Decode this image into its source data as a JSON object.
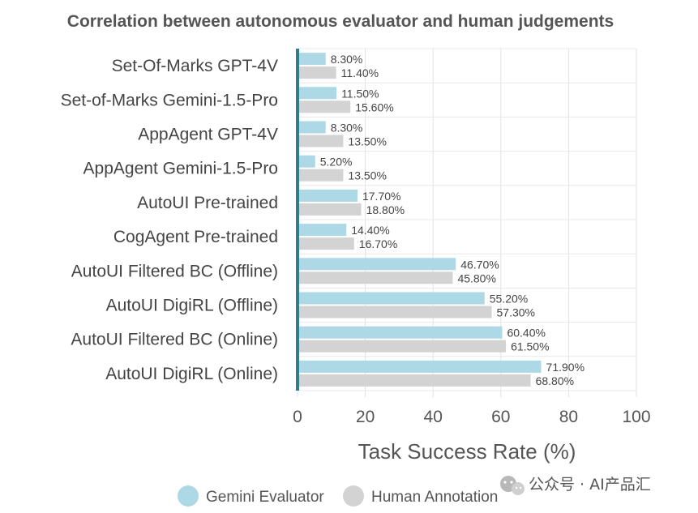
{
  "chart_data": {
    "type": "bar",
    "orientation": "horizontal",
    "title": "Correlation between autonomous evaluator and human judgements",
    "xlabel": "Task Success Rate (%)",
    "ylabel": "",
    "xlim": [
      0,
      100
    ],
    "x_ticks": [
      "0",
      "20",
      "40",
      "60",
      "80",
      "100"
    ],
    "grid": true,
    "legend_position": "bottom",
    "categories": [
      "Set-Of-Marks GPT-4V",
      "Set-of-Marks Gemini-1.5-Pro",
      "AppAgent GPT-4V",
      "AppAgent Gemini-1.5-Pro",
      "AutoUI Pre-trained",
      "CogAgent Pre-trained",
      "AutoUI Filtered BC (Offline)",
      "AutoUI DigiRL (Offline)",
      "AutoUI Filtered BC (Online)",
      "AutoUI DigiRL (Online)"
    ],
    "series": [
      {
        "name": "Gemini Evaluator",
        "color": "#add8e6",
        "values": [
          8.3,
          11.5,
          8.3,
          5.2,
          17.7,
          14.4,
          46.7,
          55.2,
          60.4,
          71.9
        ],
        "labels": [
          "8.30%",
          "11.50%",
          "8.30%",
          "5.20%",
          "17.70%",
          "14.40%",
          "46.70%",
          "55.20%",
          "60.40%",
          "71.90%"
        ]
      },
      {
        "name": "Human Annotation",
        "color": "#d3d3d3",
        "values": [
          11.4,
          15.6,
          13.5,
          13.5,
          18.8,
          16.7,
          45.8,
          57.3,
          61.5,
          68.8
        ],
        "labels": [
          "11.40%",
          "15.60%",
          "13.50%",
          "13.50%",
          "18.80%",
          "16.70%",
          "45.80%",
          "57.30%",
          "61.50%",
          "68.80%"
        ]
      }
    ],
    "axis_color": "#2e7d8c"
  },
  "watermark": {
    "text": "公众号 · AI产品汇",
    "icon": "wechat-icon"
  }
}
